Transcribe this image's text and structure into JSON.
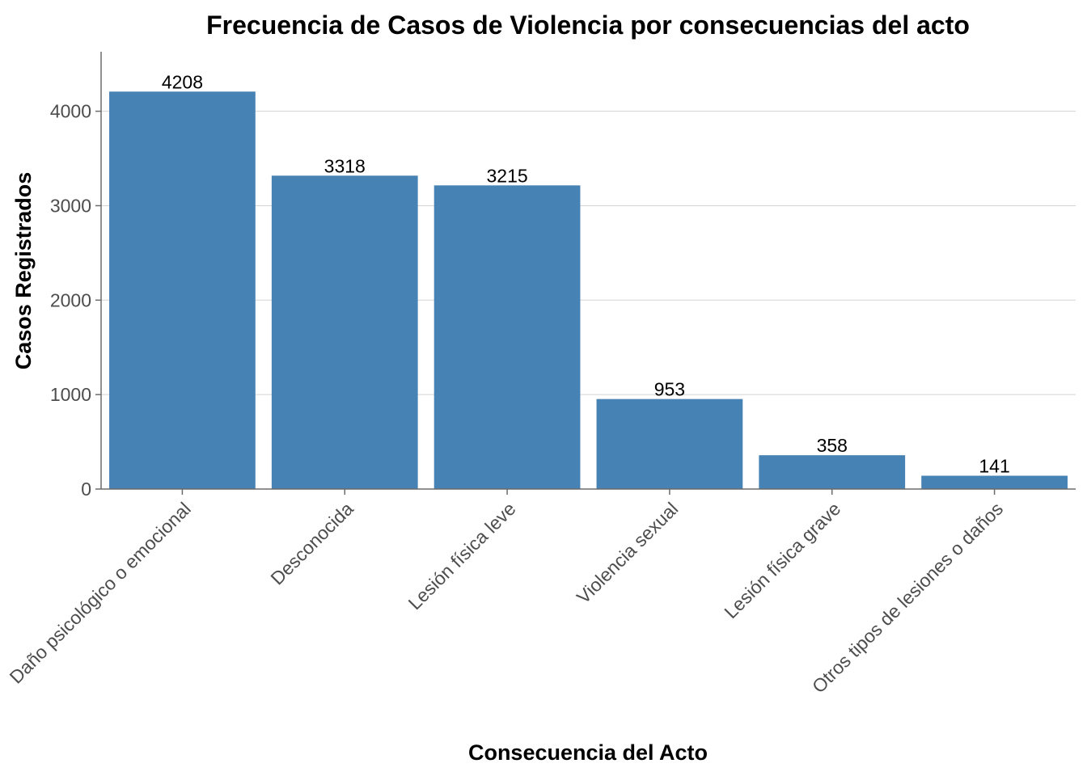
{
  "chart_data": {
    "type": "bar",
    "title": "Frecuencia de Casos de Violencia por consecuencias del acto",
    "xlabel": "Consecuencia del Acto",
    "ylabel": "Casos Registrados",
    "categories": [
      "Daño psicológico o emocional",
      "Desconocida",
      "Lesión física leve",
      "Violencia sexual",
      "Lesión física grave",
      "Otros tipos de lesiones o daños"
    ],
    "values": [
      4208,
      3318,
      3215,
      953,
      358,
      141
    ],
    "ylim": [
      0,
      4630
    ],
    "yticks": [
      0,
      1000,
      2000,
      3000,
      4000
    ],
    "bar_color": "#4682B4",
    "grid": "horizontal",
    "legend": "none"
  }
}
